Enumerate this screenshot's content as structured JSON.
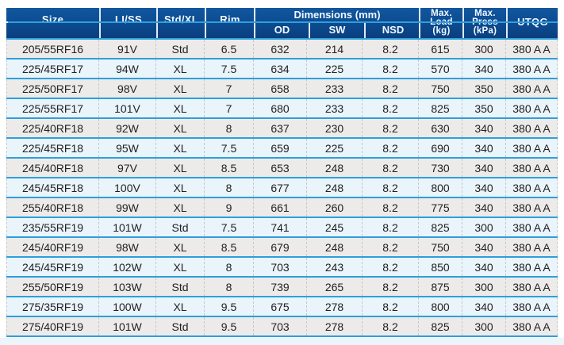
{
  "table": {
    "header": {
      "size": "Size",
      "li_ss": "LI/SS",
      "std_xl": "Std/XL",
      "rim": "Rim",
      "dimensions_group": "Dimensions (mm)",
      "od": "OD",
      "sw": "SW",
      "nsd": "NSD",
      "max_load": "Max.\nLoad\n(kg)",
      "max_press": "Max.\nPress\n(kPa)",
      "utqg": "UTQG"
    },
    "rows": [
      {
        "size": "205/55RF16",
        "li_ss": "91V",
        "std_xl": "Std",
        "rim": "6.5",
        "od": "632",
        "sw": "214",
        "nsd": "8.2",
        "max_load": "615",
        "max_press": "300",
        "utqg": "380 A A"
      },
      {
        "size": "225/45RF17",
        "li_ss": "94W",
        "std_xl": "XL",
        "rim": "7.5",
        "od": "634",
        "sw": "225",
        "nsd": "8.2",
        "max_load": "570",
        "max_press": "340",
        "utqg": "380 A A"
      },
      {
        "size": "225/50RF17",
        "li_ss": "98V",
        "std_xl": "XL",
        "rim": "7",
        "od": "658",
        "sw": "233",
        "nsd": "8.2",
        "max_load": "750",
        "max_press": "350",
        "utqg": "380 A A"
      },
      {
        "size": "225/55RF17",
        "li_ss": "101V",
        "std_xl": "XL",
        "rim": "7",
        "od": "680",
        "sw": "233",
        "nsd": "8.2",
        "max_load": "825",
        "max_press": "350",
        "utqg": "380 A A"
      },
      {
        "size": "225/40RF18",
        "li_ss": "92W",
        "std_xl": "XL",
        "rim": "8",
        "od": "637",
        "sw": "230",
        "nsd": "8.2",
        "max_load": "630",
        "max_press": "340",
        "utqg": "380 A A"
      },
      {
        "size": "225/45RF18",
        "li_ss": "95W",
        "std_xl": "XL",
        "rim": "7.5",
        "od": "659",
        "sw": "225",
        "nsd": "8.2",
        "max_load": "690",
        "max_press": "340",
        "utqg": "380 A A"
      },
      {
        "size": "245/40RF18",
        "li_ss": "97V",
        "std_xl": "XL",
        "rim": "8.5",
        "od": "653",
        "sw": "248",
        "nsd": "8.2",
        "max_load": "730",
        "max_press": "340",
        "utqg": "380 A A"
      },
      {
        "size": "245/45RF18",
        "li_ss": "100V",
        "std_xl": "XL",
        "rim": "8",
        "od": "677",
        "sw": "248",
        "nsd": "8.2",
        "max_load": "800",
        "max_press": "340",
        "utqg": "380 A A"
      },
      {
        "size": "255/40RF18",
        "li_ss": "99W",
        "std_xl": "XL",
        "rim": "9",
        "od": "661",
        "sw": "260",
        "nsd": "8.2",
        "max_load": "775",
        "max_press": "340",
        "utqg": "380 A A"
      },
      {
        "size": "235/55RF19",
        "li_ss": "101W",
        "std_xl": "Std",
        "rim": "7.5",
        "od": "741",
        "sw": "245",
        "nsd": "8.2",
        "max_load": "825",
        "max_press": "300",
        "utqg": "380 A A"
      },
      {
        "size": "245/40RF19",
        "li_ss": "98W",
        "std_xl": "XL",
        "rim": "8.5",
        "od": "679",
        "sw": "248",
        "nsd": "8.2",
        "max_load": "750",
        "max_press": "340",
        "utqg": "380 A A"
      },
      {
        "size": "245/45RF19",
        "li_ss": "102W",
        "std_xl": "XL",
        "rim": "8",
        "od": "703",
        "sw": "243",
        "nsd": "8.2",
        "max_load": "850",
        "max_press": "340",
        "utqg": "380 A A"
      },
      {
        "size": "255/50RF19",
        "li_ss": "103W",
        "std_xl": "Std",
        "rim": "8",
        "od": "739",
        "sw": "265",
        "nsd": "8.2",
        "max_load": "875",
        "max_press": "300",
        "utqg": "380 A A"
      },
      {
        "size": "275/35RF19",
        "li_ss": "100W",
        "std_xl": "XL",
        "rim": "9.5",
        "od": "675",
        "sw": "278",
        "nsd": "8.2",
        "max_load": "800",
        "max_press": "340",
        "utqg": "380 A A"
      },
      {
        "size": "275/40RF19",
        "li_ss": "101W",
        "std_xl": "Std",
        "rim": "9.5",
        "od": "703",
        "sw": "278",
        "nsd": "8.2",
        "max_load": "825",
        "max_press": "300",
        "utqg": "380 A A"
      }
    ]
  },
  "colors": {
    "header_bg_top": "#11579f",
    "header_bg_bottom": "#093f80",
    "accent_line": "#2d9fdc",
    "header_divider": "#dfeaf4",
    "row_gray": "#edebe9",
    "row_blue": "#e9f4fb",
    "divider_dashed": "#c8c8c8",
    "text": "#222222",
    "header_text": "#f2f8ff",
    "bottom_strip": "#ecf5fa"
  }
}
